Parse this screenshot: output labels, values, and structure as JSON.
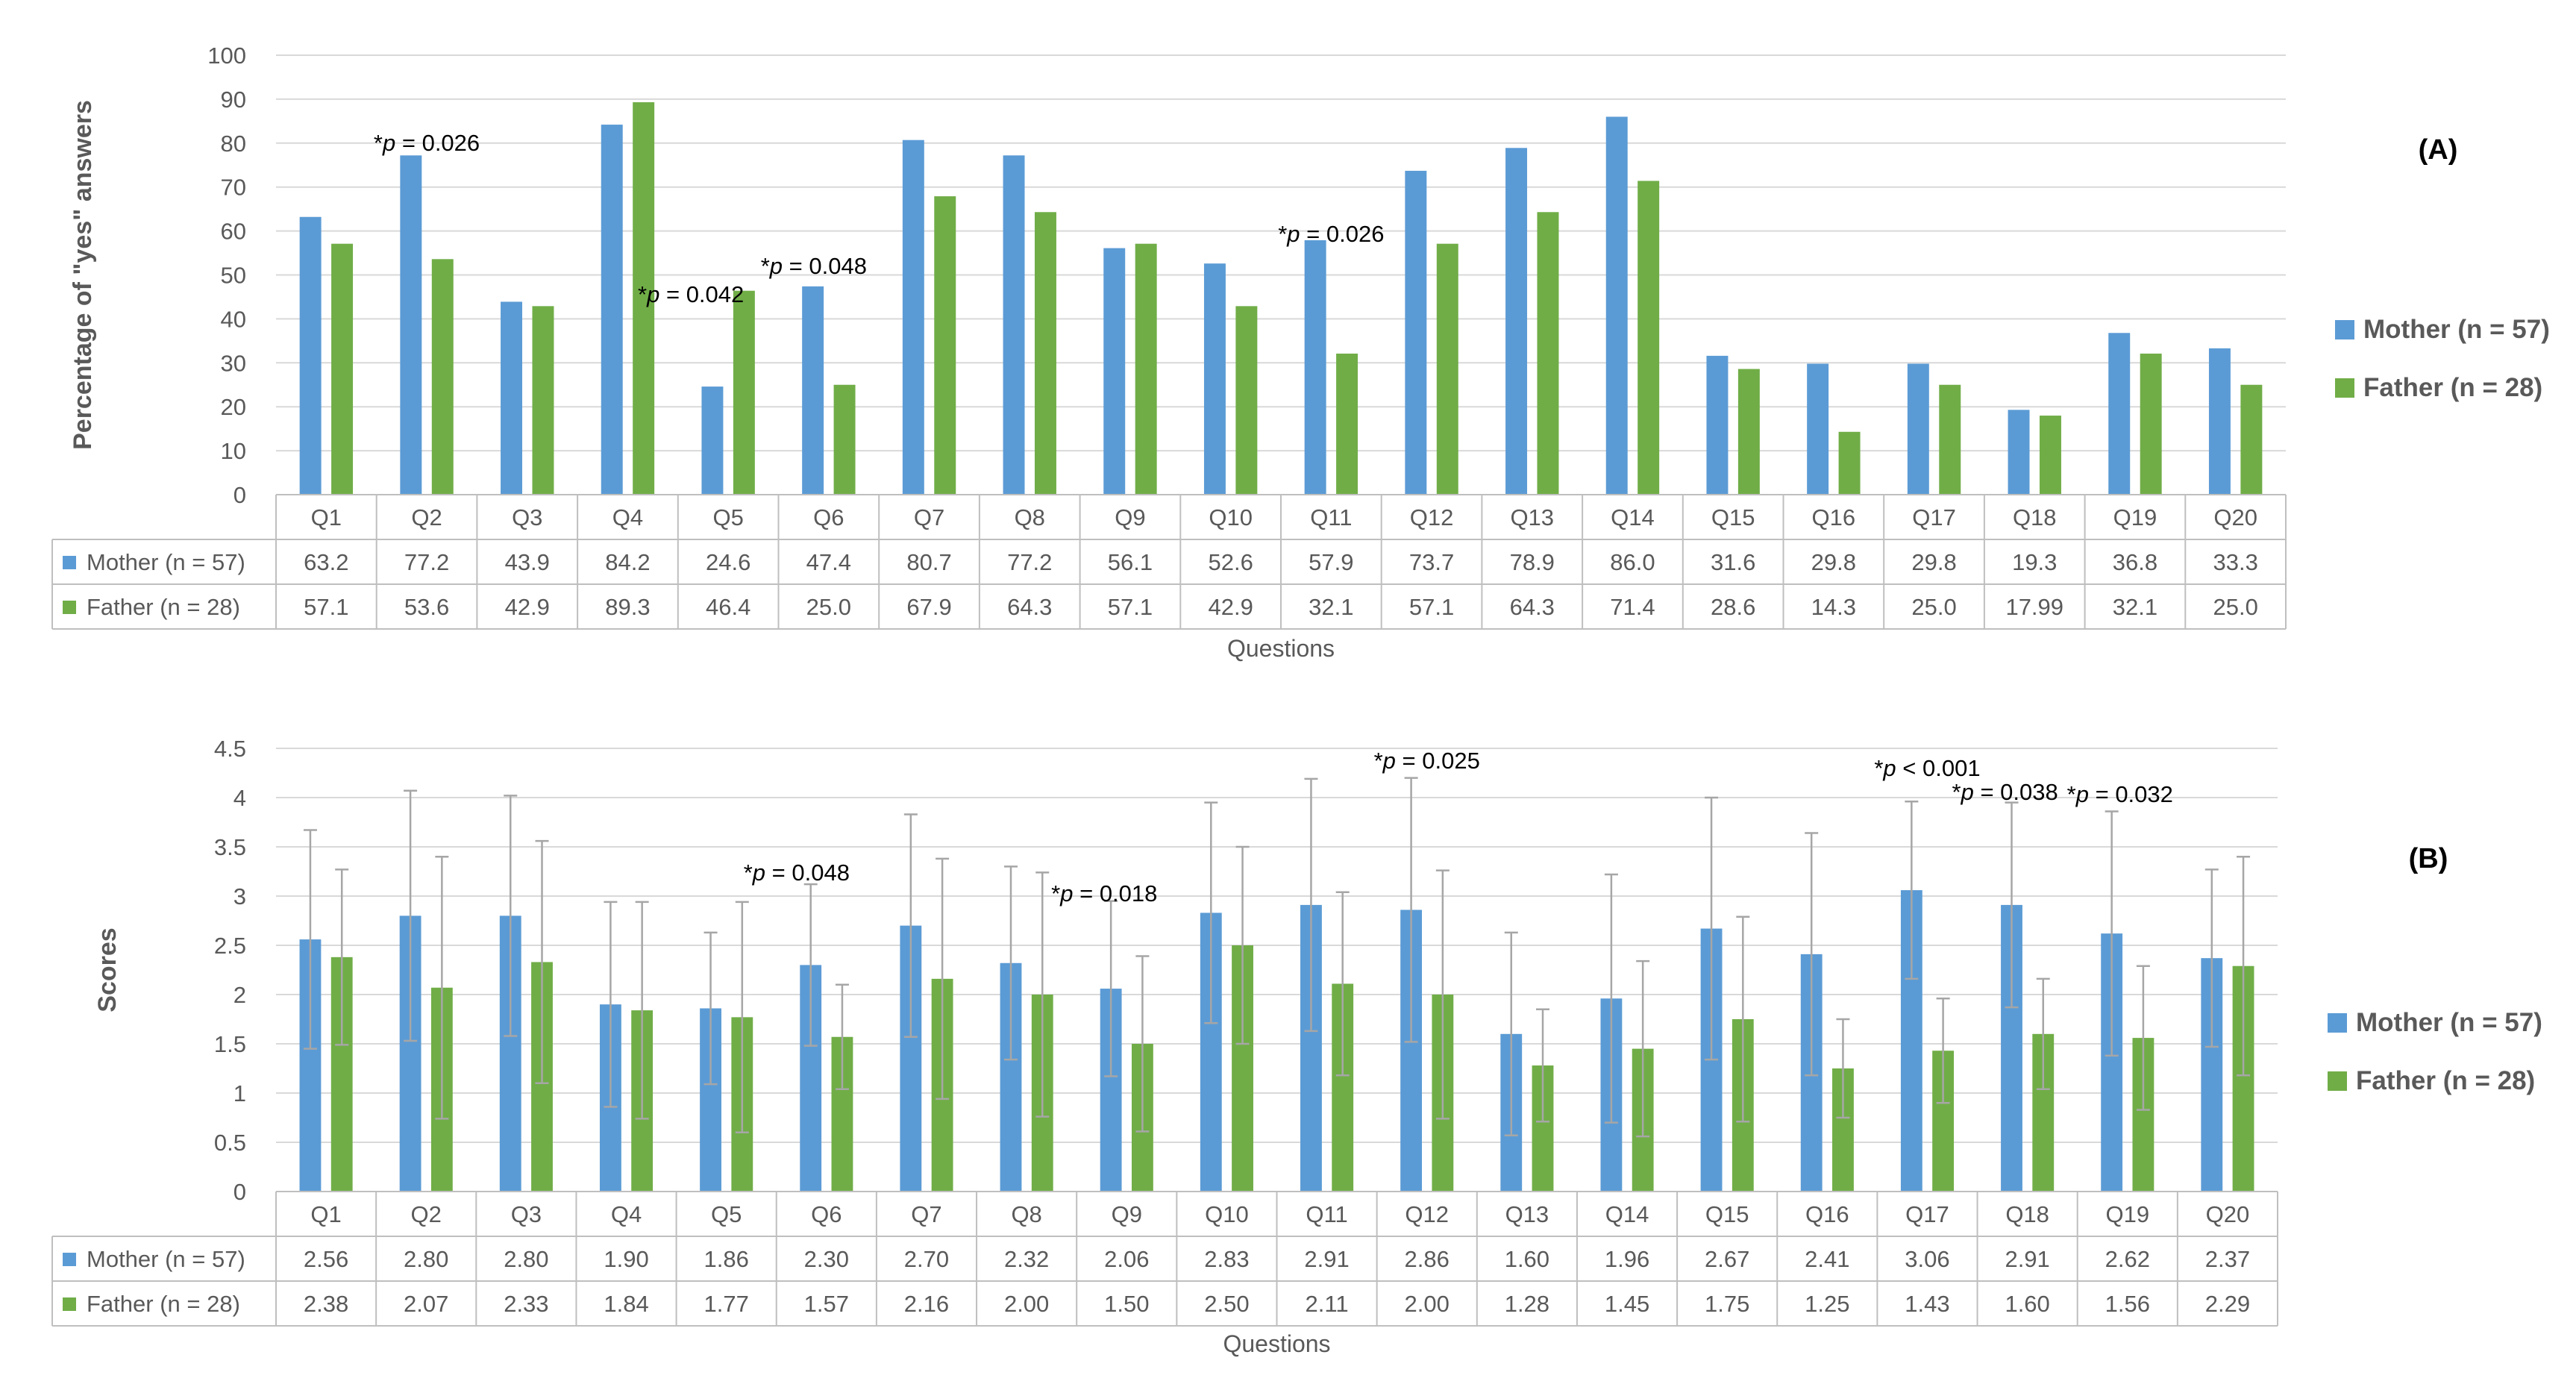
{
  "colors": {
    "mother": "#5b9bd5",
    "father": "#70ad47",
    "grid": "#d9d9d9",
    "text": "#595959",
    "errorbar": "#a6a6a6"
  },
  "chart_data": [
    {
      "panel": "(A)",
      "type": "bar",
      "title": "",
      "xlabel": "Questions",
      "ylabel": "Percentage of \"yes\" answers",
      "ylim": [
        0,
        100
      ],
      "yticks": [
        "0",
        "10",
        "20",
        "30",
        "40",
        "50",
        "60",
        "70",
        "80",
        "90",
        "100"
      ],
      "grid": true,
      "legend_placement": "right",
      "categories": [
        "Q1",
        "Q2",
        "Q3",
        "Q4",
        "Q5",
        "Q6",
        "Q7",
        "Q8",
        "Q9",
        "Q10",
        "Q11",
        "Q12",
        "Q13",
        "Q14",
        "Q15",
        "Q16",
        "Q17",
        "Q18",
        "Q19",
        "Q20"
      ],
      "series": [
        {
          "name": "Mother (n = 57)",
          "values": [
            63.2,
            77.2,
            43.9,
            84.2,
            24.6,
            47.4,
            80.7,
            77.2,
            56.1,
            52.6,
            57.9,
            73.7,
            78.9,
            86.0,
            31.6,
            29.8,
            29.8,
            19.3,
            36.8,
            33.3
          ],
          "labels": [
            "63.2",
            "77.2",
            "43.9",
            "84.2",
            "24.6",
            "47.4",
            "80.7",
            "77.2",
            "56.1",
            "52.6",
            "57.9",
            "73.7",
            "78.9",
            "86.0",
            "31.6",
            "29.8",
            "29.8",
            "19.3",
            "36.8",
            "33.3"
          ]
        },
        {
          "name": "Father (n = 28)",
          "values": [
            57.1,
            53.6,
            42.9,
            89.3,
            46.4,
            25.0,
            67.9,
            64.3,
            57.1,
            42.9,
            32.1,
            57.1,
            64.3,
            71.4,
            28.6,
            14.3,
            25.0,
            17.99,
            32.1,
            25.0
          ],
          "labels": [
            "57.1",
            "53.6",
            "42.9",
            "89.3",
            "46.4",
            "25.0",
            "67.9",
            "64.3",
            "57.1",
            "42.9",
            "32.1",
            "57.1",
            "64.3",
            "71.4",
            "28.6",
            "14.3",
            "25.0",
            "17.99",
            "32.1",
            "25.0"
          ]
        }
      ],
      "annotations": [
        {
          "category": "Q2",
          "prefix": "*",
          "italic": "p",
          "rest": " = 0.026"
        },
        {
          "category": "Q5",
          "prefix": "*",
          "italic": "p",
          "rest": " = 0.042"
        },
        {
          "category": "Q6",
          "prefix": "*",
          "italic": "p",
          "rest": " = 0.048"
        },
        {
          "category": "Q11",
          "prefix": "*",
          "italic": "p",
          "rest": " = 0.026"
        }
      ]
    },
    {
      "panel": "(B)",
      "type": "bar",
      "title": "",
      "xlabel": "Questions",
      "ylabel": "Scores",
      "ylim": [
        0,
        4.5
      ],
      "yticks": [
        "0",
        "0.5",
        "1",
        "1.5",
        "2",
        "2.5",
        "3",
        "3.5",
        "4",
        "4.5"
      ],
      "grid": true,
      "legend_placement": "right",
      "error_bars": true,
      "categories": [
        "Q1",
        "Q2",
        "Q3",
        "Q4",
        "Q5",
        "Q6",
        "Q7",
        "Q8",
        "Q9",
        "Q10",
        "Q11",
        "Q12",
        "Q13",
        "Q14",
        "Q15",
        "Q16",
        "Q17",
        "Q18",
        "Q19",
        "Q20"
      ],
      "series": [
        {
          "name": "Mother (n = 57)",
          "values": [
            2.56,
            2.8,
            2.8,
            1.9,
            1.86,
            2.3,
            2.7,
            2.32,
            2.06,
            2.83,
            2.91,
            2.86,
            1.6,
            1.96,
            2.67,
            2.41,
            3.06,
            2.91,
            2.62,
            2.37
          ],
          "labels": [
            "2.56",
            "2.80",
            "2.80",
            "1.90",
            "1.86",
            "2.30",
            "2.70",
            "2.32",
            "2.06",
            "2.83",
            "2.91",
            "2.86",
            "1.60",
            "1.96",
            "2.67",
            "2.41",
            "3.06",
            "2.91",
            "2.62",
            "2.37"
          ],
          "error": [
            1.11,
            1.27,
            1.22,
            1.04,
            0.77,
            0.82,
            1.13,
            0.98,
            0.89,
            1.12,
            1.28,
            1.34,
            1.03,
            1.26,
            1.33,
            1.23,
            0.9,
            1.04,
            1.24,
            0.9
          ]
        },
        {
          "name": "Father (n = 28)",
          "values": [
            2.38,
            2.07,
            2.33,
            1.84,
            1.77,
            1.57,
            2.16,
            2.0,
            1.5,
            2.5,
            2.11,
            2.0,
            1.28,
            1.45,
            1.75,
            1.25,
            1.43,
            1.6,
            1.56,
            2.29
          ],
          "labels": [
            "2.38",
            "2.07",
            "2.33",
            "1.84",
            "1.77",
            "1.57",
            "2.16",
            "2.00",
            "1.50",
            "2.50",
            "2.11",
            "2.00",
            "1.28",
            "1.45",
            "1.75",
            "1.25",
            "1.43",
            "1.60",
            "1.56",
            "2.29"
          ],
          "error": [
            0.89,
            1.33,
            1.23,
            1.1,
            1.17,
            0.53,
            1.22,
            1.24,
            0.89,
            1.0,
            0.93,
            1.26,
            0.57,
            0.89,
            1.04,
            0.5,
            0.53,
            0.56,
            0.73,
            1.11
          ]
        }
      ],
      "annotations": [
        {
          "category": "Q6",
          "prefix": "*",
          "italic": "p",
          "rest": " = 0.048"
        },
        {
          "category": "Q9",
          "prefix": "*",
          "italic": "p",
          "rest": " = 0.018"
        },
        {
          "category": "Q12",
          "prefix": "*",
          "italic": "p",
          "rest": " = 0.025"
        },
        {
          "category": "Q17",
          "prefix": "*",
          "italic": "p",
          "rest": " < 0.001"
        },
        {
          "category": "Q18",
          "prefix": "*",
          "italic": "p",
          "rest": " = 0.038"
        },
        {
          "category": "Q19",
          "prefix": "*",
          "italic": "p",
          "rest": " = 0.032"
        }
      ]
    }
  ]
}
